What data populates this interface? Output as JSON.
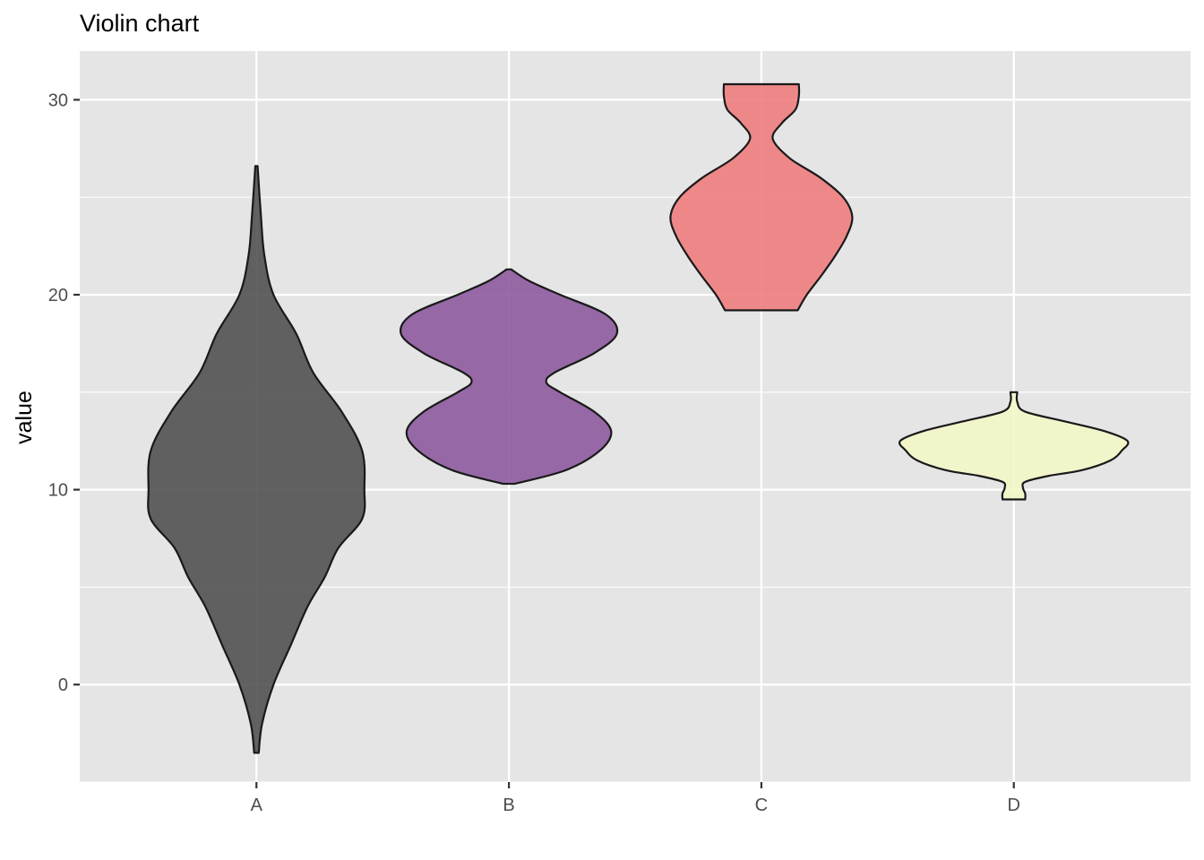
{
  "chart_data": {
    "type": "violin",
    "title": "Violin chart",
    "xlabel": "",
    "ylabel": "value",
    "categories": [
      "A",
      "B",
      "C",
      "D"
    ],
    "ylim": [
      -5,
      32.5
    ],
    "yticks": [
      0,
      10,
      20,
      30
    ],
    "grid": true,
    "legend": "none",
    "panel_background": "#e5e5e5",
    "grid_color": "#ffffff",
    "outline_color": "#1a1a1a",
    "series": [
      {
        "category": "A",
        "color": "#4d4d4d",
        "range": [
          -3.5,
          26.6
        ],
        "density": [
          [
            -3.5,
            0.02
          ],
          [
            -2.0,
            0.05
          ],
          [
            0.0,
            0.15
          ],
          [
            2.0,
            0.3
          ],
          [
            4.0,
            0.45
          ],
          [
            5.5,
            0.6
          ],
          [
            7.0,
            0.72
          ],
          [
            8.5,
            0.93
          ],
          [
            10.0,
            0.95
          ],
          [
            12.0,
            0.93
          ],
          [
            14.0,
            0.75
          ],
          [
            16.0,
            0.5
          ],
          [
            18.0,
            0.35
          ],
          [
            20.0,
            0.15
          ],
          [
            22.0,
            0.07
          ],
          [
            24.0,
            0.04
          ],
          [
            26.6,
            0.01
          ]
        ]
      },
      {
        "category": "B",
        "color": "#8b579c",
        "range": [
          10.3,
          21.3
        ],
        "density": [
          [
            10.3,
            0.05
          ],
          [
            11.0,
            0.5
          ],
          [
            12.0,
            0.8
          ],
          [
            13.0,
            0.9
          ],
          [
            14.0,
            0.75
          ],
          [
            15.0,
            0.45
          ],
          [
            15.5,
            0.33
          ],
          [
            16.0,
            0.4
          ],
          [
            17.0,
            0.75
          ],
          [
            18.0,
            0.95
          ],
          [
            19.0,
            0.85
          ],
          [
            20.0,
            0.45
          ],
          [
            20.7,
            0.18
          ],
          [
            21.3,
            0.02
          ]
        ]
      },
      {
        "category": "C",
        "color": "#ef7b7b",
        "range": [
          19.2,
          30.8
        ],
        "density": [
          [
            19.2,
            0.32
          ],
          [
            20.0,
            0.4
          ],
          [
            21.0,
            0.53
          ],
          [
            22.0,
            0.65
          ],
          [
            23.0,
            0.75
          ],
          [
            24.0,
            0.8
          ],
          [
            25.0,
            0.72
          ],
          [
            26.0,
            0.52
          ],
          [
            27.0,
            0.25
          ],
          [
            28.0,
            0.1
          ],
          [
            28.8,
            0.18
          ],
          [
            29.5,
            0.3
          ],
          [
            30.2,
            0.33
          ],
          [
            30.8,
            0.33
          ]
        ]
      },
      {
        "category": "D",
        "color": "#f4f6c6",
        "range": [
          9.5,
          15.0
        ],
        "density": [
          [
            9.5,
            0.1
          ],
          [
            9.8,
            0.1
          ],
          [
            10.1,
            0.08
          ],
          [
            10.4,
            0.1
          ],
          [
            10.7,
            0.3
          ],
          [
            11.0,
            0.6
          ],
          [
            11.5,
            0.85
          ],
          [
            12.0,
            0.95
          ],
          [
            12.5,
            1.0
          ],
          [
            13.0,
            0.8
          ],
          [
            13.5,
            0.45
          ],
          [
            14.0,
            0.1
          ],
          [
            14.5,
            0.03
          ],
          [
            15.0,
            0.03
          ]
        ]
      }
    ]
  }
}
